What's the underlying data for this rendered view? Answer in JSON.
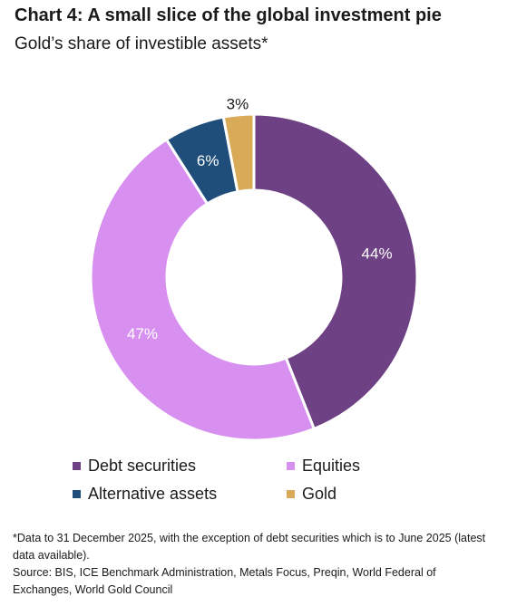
{
  "header": {
    "title": "Chart 4: A small slice of the global investment pie",
    "subtitle": "Gold’s share of investible assets*"
  },
  "chart_data": {
    "type": "pie",
    "donut": true,
    "categories": [
      "Debt securities",
      "Equities",
      "Alternative assets",
      "Gold"
    ],
    "values": [
      44,
      47,
      6,
      3
    ],
    "labels": [
      "44%",
      "47%",
      "6%",
      "3%"
    ],
    "colors": [
      "#6e4184",
      "#d78ff0",
      "#1e4e79",
      "#d9aa57"
    ],
    "label_colors": [
      "#ffffff",
      "#ffffff",
      "#ffffff",
      "#1a1a1a"
    ],
    "legend_position": "bottom"
  },
  "legend": {
    "items": [
      {
        "label": "Debt securities",
        "color": "#6e4184"
      },
      {
        "label": "Equities",
        "color": "#d78ff0"
      },
      {
        "label": "Alternative assets",
        "color": "#1e4e79"
      },
      {
        "label": "Gold",
        "color": "#d9aa57"
      }
    ]
  },
  "notes": {
    "footnote": "*Data to 31 December 2025, with the exception of debt securities which is to June 2025 (latest data available).",
    "source": "Source: BIS, ICE Benchmark Administration, Metals Focus, Preqin, World Federal of Exchanges, World Gold Council"
  }
}
